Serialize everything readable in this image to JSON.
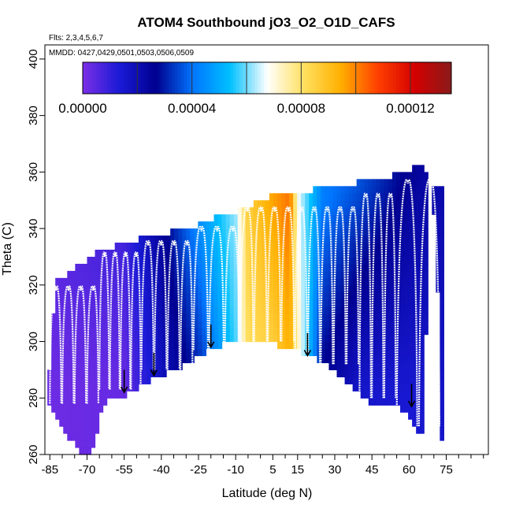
{
  "chart_data": {
    "type": "heatmap",
    "title": "ATOM4 Southbound jO3_O2_O1D_CAFS",
    "flights_text": "Flts: 2,3,4,5,6,7",
    "dates_text": "MMDD: 0427,0429,0501,0503,0506,0509",
    "xlabel": "Latitude (deg N)",
    "ylabel": "Theta (C)",
    "xlim": [
      -87,
      92
    ],
    "ylim": [
      260,
      405
    ],
    "x_ticks": [
      -85,
      -70,
      -55,
      -40,
      -25,
      -10,
      5,
      15,
      30,
      45,
      60,
      75
    ],
    "x_minor_ticks": [
      -80,
      -75,
      -65,
      -60,
      -50,
      -45,
      -35,
      -30,
      -20,
      -15,
      -5,
      0,
      10,
      20,
      25,
      35,
      40,
      50,
      55,
      65,
      70,
      80,
      85,
      90
    ],
    "y_ticks": [
      260,
      280,
      300,
      320,
      340,
      360,
      380,
      400
    ],
    "colorbar": {
      "min": 0.0,
      "max": 0.000135,
      "tick_values": [
        0.0,
        4e-05,
        8e-05,
        0.00012
      ],
      "tick_labels": [
        "0.00000",
        "0.00004",
        "0.00008",
        "0.00012"
      ],
      "divisions": [
        2e-05,
        4e-05,
        6e-05,
        8e-05,
        0.0001,
        0.00012
      ],
      "colors": [
        "#7b2fe6",
        "#1a1ad6",
        "#00008f",
        "#0077ff",
        "#00c0ff",
        "#ffffff",
        "#ffe060",
        "#ffb000",
        "#ff4000",
        "#d40000",
        "#8a1a1a"
      ]
    },
    "region": {
      "west_boundary": [
        [
          -86,
          278
        ],
        [
          -85,
          292
        ],
        [
          -84,
          306
        ],
        [
          -83,
          318
        ],
        [
          -82,
          322
        ],
        [
          -79,
          322
        ],
        [
          -78,
          324
        ],
        [
          -76,
          325
        ],
        [
          -72,
          328
        ],
        [
          -70,
          329
        ],
        [
          -68,
          331
        ],
        [
          -66,
          332
        ],
        [
          -62,
          332
        ],
        [
          -59,
          334
        ],
        [
          -56,
          335
        ],
        [
          -50,
          335
        ],
        [
          -48,
          337
        ],
        [
          -44,
          338
        ],
        [
          -40,
          338
        ],
        [
          -36,
          339
        ],
        [
          -32,
          339
        ],
        [
          -28,
          340
        ],
        [
          -24,
          342
        ],
        [
          -20,
          343
        ],
        [
          -17,
          345
        ],
        [
          -14,
          346
        ],
        [
          -10,
          346
        ],
        [
          -7,
          347
        ],
        [
          -2,
          349
        ],
        [
          2,
          351
        ],
        [
          6,
          352
        ],
        [
          10,
          352
        ],
        [
          14,
          352
        ],
        [
          18,
          353
        ],
        [
          22,
          354
        ],
        [
          26,
          354
        ],
        [
          30,
          355
        ],
        [
          34,
          356
        ],
        [
          38,
          356
        ],
        [
          42,
          357
        ],
        [
          46,
          357
        ],
        [
          50,
          358
        ],
        [
          54,
          359
        ],
        [
          58,
          360
        ],
        [
          60,
          361
        ],
        [
          62,
          362
        ],
        [
          64,
          362
        ],
        [
          66,
          361
        ],
        [
          68,
          356
        ]
      ],
      "east_boundary": [
        [
          68,
          356
        ],
        [
          70,
          345
        ],
        [
          71,
          330
        ],
        [
          72,
          310
        ],
        [
          73,
          290
        ],
        [
          73,
          266
        ],
        [
          72,
          264
        ],
        [
          70,
          265
        ],
        [
          66,
          266
        ],
        [
          63,
          268
        ],
        [
          60,
          273
        ],
        [
          55,
          277
        ],
        [
          50,
          278
        ],
        [
          45,
          277
        ],
        [
          40,
          282
        ],
        [
          35,
          286
        ],
        [
          30,
          290
        ],
        [
          25,
          293
        ],
        [
          20,
          295
        ],
        [
          15,
          297
        ],
        [
          10,
          298
        ],
        [
          5,
          299
        ],
        [
          0,
          299
        ],
        [
          -5,
          299
        ],
        [
          -10,
          301
        ],
        [
          -15,
          299
        ],
        [
          -20,
          297
        ],
        [
          -25,
          295
        ],
        [
          -30,
          292
        ],
        [
          -35,
          290
        ],
        [
          -40,
          288
        ],
        [
          -45,
          286
        ],
        [
          -50,
          283
        ],
        [
          -55,
          281
        ],
        [
          -60,
          280
        ],
        [
          -64,
          278
        ],
        [
          -67,
          262
        ],
        [
          -70,
          260
        ],
        [
          -74,
          262
        ],
        [
          -77,
          266
        ],
        [
          -81,
          270
        ],
        [
          -84,
          276
        ],
        [
          -86,
          278
        ]
      ],
      "value_pattern": [
        {
          "lat": -85,
          "thetas": [
            [
              280,
              2e-06
            ],
            [
              320,
              4e-06
            ]
          ]
        },
        {
          "lat": -55,
          "thetas": [
            [
              285,
              3e-06
            ],
            [
              330,
              8e-06
            ]
          ]
        },
        {
          "lat": -40,
          "thetas": [
            [
              290,
              1.8e-05
            ],
            [
              335,
              2.4e-05
            ]
          ]
        },
        {
          "lat": -25,
          "thetas": [
            [
              295,
              3.2e-05
            ],
            [
              340,
              4.4e-05
            ]
          ]
        },
        {
          "lat": -10,
          "thetas": [
            [
              300,
              5.8e-05
            ],
            [
              345,
              6.2e-05
            ]
          ]
        },
        {
          "lat": -5,
          "thetas": [
            [
              300,
              8.2e-05
            ],
            [
              345,
              8.6e-05
            ]
          ]
        },
        {
          "lat": 5,
          "thetas": [
            [
              300,
              8.6e-05
            ],
            [
              350,
              9.6e-05
            ]
          ]
        },
        {
          "lat": 12,
          "thetas": [
            [
              305,
              9.5e-05
            ],
            [
              345,
              0.000102
            ]
          ]
        },
        {
          "lat": 15,
          "thetas": [
            [
              300,
              7.4e-05
            ],
            [
              350,
              6.8e-05
            ]
          ]
        },
        {
          "lat": 25,
          "thetas": [
            [
              295,
              2.8e-05
            ],
            [
              350,
              4.2e-05
            ]
          ]
        },
        {
          "lat": 40,
          "thetas": [
            [
              285,
              1.6e-05
            ],
            [
              355,
              3.6e-05
            ]
          ]
        },
        {
          "lat": 60,
          "thetas": [
            [
              280,
              1.4e-05
            ],
            [
              360,
              2.6e-05
            ]
          ]
        },
        {
          "lat": 70,
          "thetas": [
            [
              270,
              1.6e-05
            ],
            [
              360,
              2.2e-05
            ]
          ]
        }
      ]
    },
    "flight_profiles": [
      {
        "lat_start": -85,
        "lat_end": -65,
        "bottom": 278,
        "top": 322,
        "count": 4
      },
      {
        "lat_start": -65,
        "lat_end": -48,
        "bottom": 283,
        "top": 334,
        "count": 4
      },
      {
        "lat_start": -48,
        "lat_end": -27,
        "bottom": 290,
        "top": 338,
        "count": 4
      },
      {
        "lat_start": -27,
        "lat_end": -8,
        "bottom": 297,
        "top": 343,
        "count": 3
      },
      {
        "lat_start": -8,
        "lat_end": 14,
        "bottom": 300,
        "top": 350,
        "count": 4
      },
      {
        "lat_start": 14,
        "lat_end": 40,
        "bottom": 292,
        "top": 350,
        "count": 5
      },
      {
        "lat_start": 40,
        "lat_end": 55,
        "bottom": 280,
        "top": 355,
        "count": 3
      },
      {
        "lat_start": 55,
        "lat_end": 73,
        "bottom": 270,
        "top": 360,
        "count": 2
      }
    ],
    "tropopause_arrows": [
      {
        "lat": -55,
        "theta": 282
      },
      {
        "lat": -43,
        "theta": 288
      },
      {
        "lat": -20,
        "theta": 298
      },
      {
        "lat": 19,
        "theta": 295
      },
      {
        "lat": 61,
        "theta": 277
      }
    ]
  }
}
